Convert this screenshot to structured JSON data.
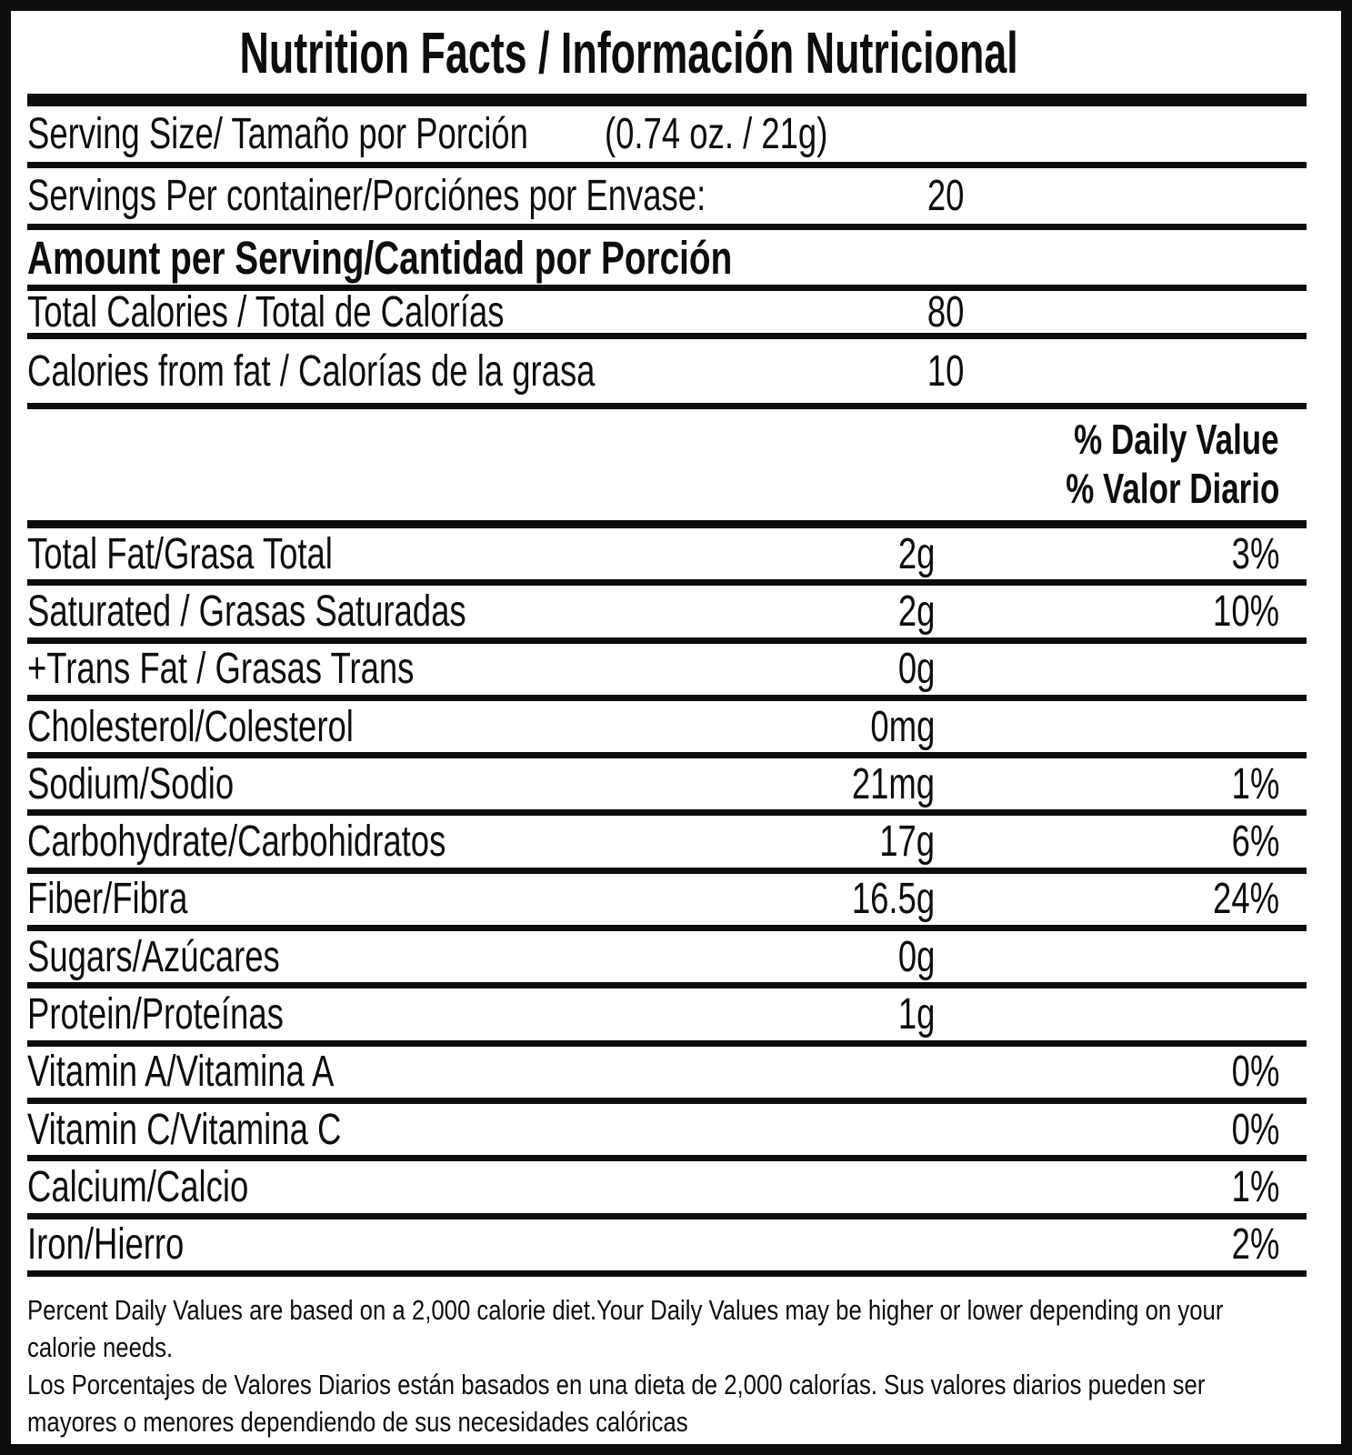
{
  "label": {
    "title": "Nutrition Facts / Información Nutricional",
    "serving": {
      "label": "Serving Size/ Tamaño por Porción",
      "value": "(0.74 oz. / 21g)"
    },
    "servings_per_container": {
      "label": "Servings Per container/Porciónes por Envase:",
      "value": "20"
    },
    "amount_per_serving_header": "Amount per Serving/Cantidad por Porción",
    "calories_rows": [
      {
        "label": "Total Calories / Total de Calorías",
        "value": "80"
      },
      {
        "label": "Calories from fat / Calorías de la grasa",
        "value": "10"
      }
    ],
    "daily_value_header": {
      "line1": "% Daily Value",
      "line2": "% Valor Diario"
    },
    "nutrients": [
      {
        "label": "Total Fat/Grasa Total",
        "amount": "2g",
        "dv": "3%"
      },
      {
        "label": "Saturated / Grasas Saturadas",
        "amount": "2g",
        "dv": "10%"
      },
      {
        "label": "+Trans Fat / Grasas Trans",
        "amount": "0g",
        "dv": ""
      },
      {
        "label": "Cholesterol/Colesterol",
        "amount": "0mg",
        "dv": ""
      },
      {
        "label": "Sodium/Sodio",
        "amount": "21mg",
        "dv": "1%"
      },
      {
        "label": "Carbohydrate/Carbohidratos",
        "amount": "17g",
        "dv": "6%"
      },
      {
        "label": "Fiber/Fibra",
        "amount": "16.5g",
        "dv": "24%"
      },
      {
        "label": "Sugars/Azúcares",
        "amount": "0g",
        "dv": ""
      },
      {
        "label": "Protein/Proteínas",
        "amount": "1g",
        "dv": ""
      },
      {
        "label": "Vitamin A/Vitamina A",
        "amount": "",
        "dv": "0%"
      },
      {
        "label": "Vitamin C/Vitamina C",
        "amount": "",
        "dv": "0%"
      },
      {
        "label": "Calcium/Calcio",
        "amount": "",
        "dv": "1%"
      },
      {
        "label": "Iron/Hierro",
        "amount": "",
        "dv": "2%"
      }
    ],
    "footnote": {
      "en": "Percent Daily Values are based on a 2,000 calorie diet.Your Daily Values may be higher or lower depending on your\ncalorie needs.",
      "es": "Los Porcentajes de Valores Diarios están basados en una dieta de 2,000 calorías. Sus valores diarios pueden ser\nmayores o menores dependiendo de sus necesidades calóricas"
    },
    "colors": {
      "ink": "#0d0d0d",
      "paper": "#ffffff"
    }
  }
}
